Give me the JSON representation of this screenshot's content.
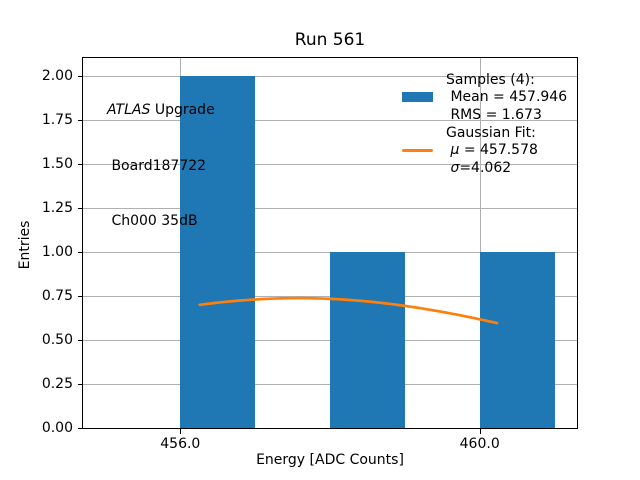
{
  "title": "Run 561",
  "annotation": {
    "line1_italic": "ATLAS",
    "line1_rest": " Upgrade",
    "line2": " Board187722",
    "line3": " Ch000 35dB"
  },
  "axes": {
    "xlabel": "Energy [ADC Counts]",
    "ylabel": "Entries",
    "xlim": [
      454.7,
      461.3
    ],
    "ylim": [
      0,
      2.1
    ],
    "xticks": [
      {
        "value": 456.0,
        "label": "456.0"
      },
      {
        "value": 460.0,
        "label": "460.0"
      }
    ],
    "yticks": [
      {
        "value": 0.0,
        "label": "0.00"
      },
      {
        "value": 0.25,
        "label": "0.25"
      },
      {
        "value": 0.5,
        "label": "0.50"
      },
      {
        "value": 0.75,
        "label": "0.75"
      },
      {
        "value": 1.0,
        "label": "1.00"
      },
      {
        "value": 1.25,
        "label": "1.25"
      },
      {
        "value": 1.5,
        "label": "1.50"
      },
      {
        "value": 1.75,
        "label": "1.75"
      },
      {
        "value": 2.0,
        "label": "2.00"
      }
    ],
    "grid": true
  },
  "chart_data": [
    {
      "type": "bar",
      "name": "Samples histogram",
      "bin_edges": [
        455,
        456,
        457,
        458,
        459,
        460,
        461
      ],
      "counts": [
        0,
        2,
        0,
        1,
        0,
        1
      ],
      "n_samples": 4,
      "mean": 457.946,
      "rms": 1.673,
      "color": "#1f77b4"
    },
    {
      "type": "line",
      "name": "Gaussian Fit",
      "mu": 457.578,
      "sigma": 4.062,
      "amplitude": 0.737,
      "x_range": [
        456.26,
        460.23
      ],
      "color": "#ff7f0e"
    }
  ],
  "legend": {
    "rows": [
      {
        "handle": "none",
        "sym_prefix": "",
        "sym": "",
        "text": "Samples (4):"
      },
      {
        "handle": "patch",
        "sym_prefix": "",
        "sym": "",
        "text": " Mean = 457.946"
      },
      {
        "handle": "none",
        "sym_prefix": "",
        "sym": "",
        "text": " RMS = 1.673"
      },
      {
        "handle": "none",
        "sym_prefix": "",
        "sym": "",
        "text": "Gaussian Fit:"
      },
      {
        "handle": "line",
        "sym_prefix": " ",
        "sym": "μ",
        "text": " = 457.578"
      },
      {
        "handle": "none",
        "sym_prefix": " ",
        "sym": "σ",
        "text": "=4.062"
      }
    ]
  },
  "colors": {
    "bar": "#1f77b4",
    "fit": "#ff7f0e",
    "grid": "#b0b0b0",
    "spine": "#000000",
    "text": "#000000",
    "background": "#ffffff"
  }
}
